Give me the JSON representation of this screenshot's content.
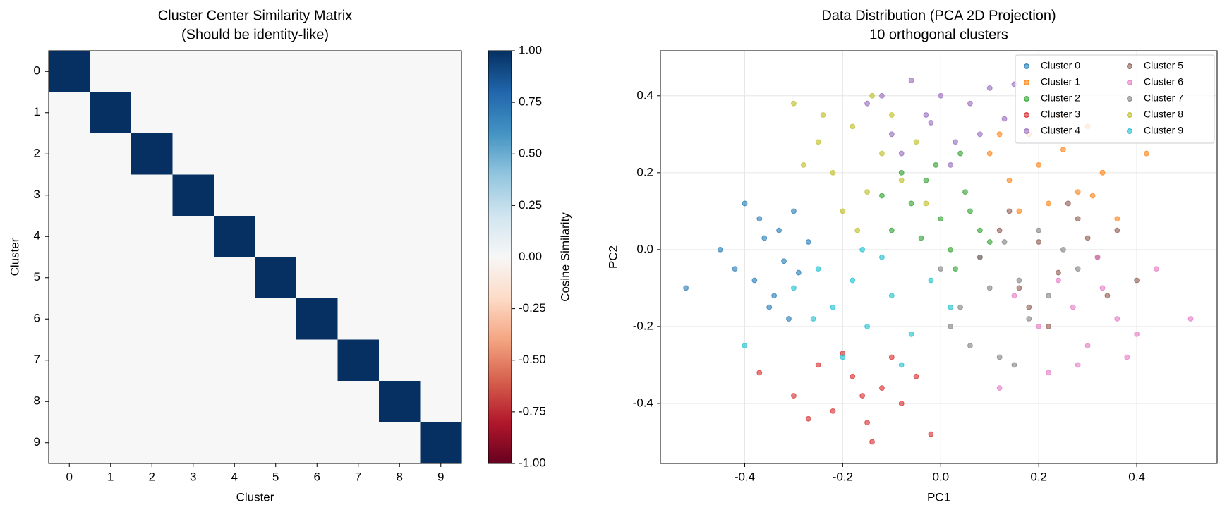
{
  "chart_data": [
    {
      "type": "heatmap",
      "title": "Cluster Center Similarity Matrix",
      "subtitle": "(Should be identity-like)",
      "x_label": "Cluster",
      "y_label": "Cluster",
      "categories": [
        "0",
        "1",
        "2",
        "3",
        "4",
        "5",
        "6",
        "7",
        "8",
        "9"
      ],
      "values": [
        [
          1,
          0,
          0,
          0,
          0,
          0,
          0,
          0,
          0,
          0
        ],
        [
          0,
          1,
          0,
          0,
          0,
          0,
          0,
          0,
          0,
          0
        ],
        [
          0,
          0,
          1,
          0,
          0,
          0,
          0,
          0,
          0,
          0
        ],
        [
          0,
          0,
          0,
          1,
          0,
          0,
          0,
          0,
          0,
          0
        ],
        [
          0,
          0,
          0,
          0,
          1,
          0,
          0,
          0,
          0,
          0
        ],
        [
          0,
          0,
          0,
          0,
          0,
          1,
          0,
          0,
          0,
          0
        ],
        [
          0,
          0,
          0,
          0,
          0,
          0,
          1,
          0,
          0,
          0
        ],
        [
          0,
          0,
          0,
          0,
          0,
          0,
          0,
          1,
          0,
          0
        ],
        [
          0,
          0,
          0,
          0,
          0,
          0,
          0,
          0,
          1,
          0
        ],
        [
          0,
          0,
          0,
          0,
          0,
          0,
          0,
          0,
          0,
          1
        ]
      ],
      "colorbar_label": "Cosine Similarity",
      "clim": [
        -1,
        1
      ],
      "cticks": [
        {
          "value": 1,
          "label": "1.00"
        },
        0.75,
        {
          "value": 0.5,
          "label": "0.50"
        },
        0.25,
        {
          "value": 0,
          "label": "0.00"
        },
        -0.25,
        {
          "value": -0.5,
          "label": "-0.50"
        },
        -0.75,
        {
          "value": -1,
          "label": "-1.00"
        }
      ],
      "colormap": [
        "#67001f",
        "#b2182b",
        "#d6604d",
        "#f4a582",
        "#fddbc7",
        "#f7f7f7",
        "#d1e5f0",
        "#92c5de",
        "#4393c3",
        "#2166ac",
        "#053061"
      ]
    },
    {
      "type": "scatter",
      "title": "Data Distribution (PCA 2D Projection)",
      "subtitle": "10 orthogonal clusters",
      "x_label": "PC1",
      "y_label": "PC2",
      "xlim": [
        -0.572,
        0.564
      ],
      "ylim": [
        -0.556,
        0.517
      ],
      "xticks": [
        -0.4,
        -0.2,
        {
          "value": 0,
          "label": "0.0"
        },
        0.2,
        0.4
      ],
      "yticks": [
        -0.4,
        -0.2,
        {
          "value": 0,
          "label": "0.0"
        },
        0.2,
        0.4
      ],
      "grid": true,
      "legend": "upper right",
      "legend_columns": 2,
      "series": [
        {
          "name": "Cluster 0",
          "color": "#1f77b4",
          "x": [
            -0.52,
            -0.45,
            -0.4,
            -0.38,
            -0.36,
            -0.35,
            -0.33,
            -0.32,
            -0.3,
            -0.29,
            -0.27,
            -0.34,
            -0.37,
            -0.31,
            -0.42
          ],
          "y": [
            -0.1,
            0.0,
            0.12,
            -0.08,
            0.03,
            -0.15,
            0.05,
            -0.03,
            0.1,
            -0.06,
            0.02,
            -0.12,
            0.08,
            -0.18,
            -0.05
          ]
        },
        {
          "name": "Cluster 1",
          "color": "#ff7f0e",
          "x": [
            0.1,
            0.14,
            0.18,
            0.2,
            0.22,
            0.25,
            0.28,
            0.3,
            0.33,
            0.36,
            0.42,
            0.16,
            0.24,
            0.12,
            0.31
          ],
          "y": [
            0.25,
            0.18,
            0.3,
            0.22,
            0.12,
            0.26,
            0.15,
            0.32,
            0.2,
            0.08,
            0.25,
            0.1,
            0.35,
            0.3,
            0.14
          ]
        },
        {
          "name": "Cluster 2",
          "color": "#2ca02c",
          "x": [
            -0.1,
            -0.06,
            -0.03,
            0.0,
            0.02,
            0.05,
            0.08,
            -0.08,
            0.03,
            -0.01,
            0.06,
            -0.12,
            0.1,
            0.04,
            -0.04
          ],
          "y": [
            0.05,
            0.12,
            0.18,
            0.08,
            0.0,
            0.15,
            0.05,
            0.2,
            -0.05,
            0.22,
            0.1,
            0.14,
            0.02,
            0.25,
            0.03
          ]
        },
        {
          "name": "Cluster 3",
          "color": "#d62728",
          "x": [
            -0.37,
            -0.3,
            -0.25,
            -0.22,
            -0.18,
            -0.15,
            -0.12,
            -0.1,
            -0.08,
            -0.05,
            -0.2,
            -0.14,
            -0.02,
            -0.27,
            -0.16
          ],
          "y": [
            -0.32,
            -0.38,
            -0.3,
            -0.42,
            -0.33,
            -0.45,
            -0.36,
            -0.28,
            -0.4,
            -0.33,
            -0.27,
            -0.5,
            -0.48,
            -0.44,
            -0.38
          ]
        },
        {
          "name": "Cluster 4",
          "color": "#9467bd",
          "x": [
            -0.15,
            -0.1,
            -0.06,
            -0.03,
            0.0,
            0.03,
            0.06,
            0.1,
            0.13,
            -0.08,
            0.02,
            0.08,
            -0.12,
            0.15,
            -0.02
          ],
          "y": [
            0.38,
            0.3,
            0.44,
            0.35,
            0.4,
            0.28,
            0.38,
            0.42,
            0.34,
            0.25,
            0.22,
            0.3,
            0.4,
            0.43,
            0.33
          ]
        },
        {
          "name": "Cluster 5",
          "color": "#8c564b",
          "x": [
            0.08,
            0.12,
            0.16,
            0.2,
            0.24,
            0.28,
            0.32,
            0.36,
            0.4,
            0.18,
            0.26,
            0.14,
            0.34,
            0.22,
            0.3
          ],
          "y": [
            -0.02,
            0.05,
            -0.1,
            0.02,
            -0.06,
            0.08,
            -0.02,
            0.05,
            -0.08,
            -0.15,
            0.12,
            0.1,
            -0.12,
            -0.2,
            0.03
          ]
        },
        {
          "name": "Cluster 6",
          "color": "#e377c2",
          "x": [
            0.15,
            0.2,
            0.24,
            0.27,
            0.3,
            0.33,
            0.36,
            0.4,
            0.44,
            0.51,
            0.22,
            0.28,
            0.12,
            0.38,
            0.32
          ],
          "y": [
            -0.12,
            -0.2,
            -0.08,
            -0.15,
            -0.25,
            -0.1,
            -0.18,
            -0.22,
            -0.05,
            -0.18,
            -0.32,
            -0.3,
            -0.36,
            -0.28,
            -0.02
          ]
        },
        {
          "name": "Cluster 7",
          "color": "#7f7f7f",
          "x": [
            0.0,
            0.04,
            0.08,
            0.1,
            0.13,
            0.16,
            0.18,
            0.22,
            0.25,
            0.06,
            0.12,
            0.2,
            0.02,
            0.28,
            0.15
          ],
          "y": [
            -0.05,
            -0.15,
            -0.02,
            -0.1,
            0.02,
            -0.08,
            -0.18,
            -0.12,
            0.0,
            -0.25,
            -0.28,
            0.05,
            -0.2,
            -0.05,
            -0.3
          ]
        },
        {
          "name": "Cluster 8",
          "color": "#bcbd22",
          "x": [
            -0.3,
            -0.25,
            -0.22,
            -0.18,
            -0.15,
            -0.12,
            -0.1,
            -0.08,
            -0.05,
            -0.2,
            -0.14,
            -0.28,
            -0.03,
            -0.17,
            -0.24
          ],
          "y": [
            0.38,
            0.28,
            0.2,
            0.32,
            0.15,
            0.25,
            0.35,
            0.18,
            0.28,
            0.1,
            0.4,
            0.22,
            0.12,
            0.05,
            0.35
          ]
        },
        {
          "name": "Cluster 9",
          "color": "#17becf",
          "x": [
            -0.4,
            -0.3,
            -0.25,
            -0.22,
            -0.18,
            -0.15,
            -0.12,
            -0.1,
            -0.06,
            -0.02,
            0.02,
            -0.2,
            -0.08,
            -0.16,
            -0.26
          ],
          "y": [
            -0.25,
            -0.1,
            -0.05,
            -0.15,
            -0.08,
            -0.2,
            -0.02,
            -0.12,
            -0.22,
            -0.08,
            -0.15,
            -0.28,
            -0.3,
            0.0,
            -0.18
          ]
        }
      ]
    }
  ]
}
